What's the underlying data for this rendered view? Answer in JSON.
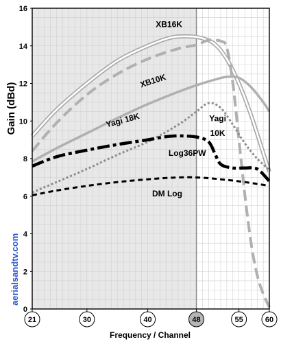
{
  "chart_data": {
    "type": "line",
    "xlabel": "Frequency / Channel",
    "ylabel": "Gain (dBd)",
    "xlim": [
      21,
      60
    ],
    "ylim": [
      0,
      16
    ],
    "yticks": [
      0,
      2,
      4,
      6,
      8,
      10,
      12,
      14,
      16
    ],
    "channel_markers": [
      21,
      30,
      40,
      48,
      55,
      60
    ],
    "highlighted_channel": 48,
    "shaded_band": [
      21,
      48
    ],
    "grid": true,
    "watermark": "aerialsandtv.com",
    "series": [
      {
        "name": "XB16K",
        "style": "double-line",
        "color": "#aaaaaa",
        "points": [
          [
            21,
            9.2
          ],
          [
            25,
            10.6
          ],
          [
            30,
            12.0
          ],
          [
            35,
            13.2
          ],
          [
            40,
            14.0
          ],
          [
            44,
            14.45
          ],
          [
            47,
            14.5
          ],
          [
            49,
            14.4
          ],
          [
            51,
            14.1
          ],
          [
            53,
            13.3
          ],
          [
            55,
            12.0
          ],
          [
            57,
            10.3
          ],
          [
            59,
            8.3
          ],
          [
            60,
            7.3
          ]
        ]
      },
      {
        "name": "XB10K",
        "style": "dashed",
        "color": "#b0b0b0",
        "points": [
          [
            21,
            8.4
          ],
          [
            25,
            9.9
          ],
          [
            30,
            11.4
          ],
          [
            35,
            12.5
          ],
          [
            40,
            13.3
          ],
          [
            45,
            13.85
          ],
          [
            48,
            14.05
          ],
          [
            50,
            14.3
          ],
          [
            52,
            14.25
          ],
          [
            53,
            13.9
          ],
          [
            54,
            12.0
          ],
          [
            55,
            9.0
          ],
          [
            56,
            6.0
          ],
          [
            57,
            3.5
          ],
          [
            58,
            1.8
          ],
          [
            59,
            0.8
          ],
          [
            60,
            0.1
          ]
        ]
      },
      {
        "name": "Yagi 18K",
        "style": "solid-thick",
        "color": "#b0b0b0",
        "points": [
          [
            21,
            7.85
          ],
          [
            25,
            8.55
          ],
          [
            30,
            9.35
          ],
          [
            35,
            10.15
          ],
          [
            40,
            10.9
          ],
          [
            45,
            11.55
          ],
          [
            48,
            11.9
          ],
          [
            51,
            12.2
          ],
          [
            53,
            12.35
          ],
          [
            55,
            12.3
          ],
          [
            57,
            11.8
          ],
          [
            59,
            11.0
          ],
          [
            60,
            10.5
          ]
        ]
      },
      {
        "name": "Yagi 10K",
        "style": "dotted",
        "color": "#8c8c8c",
        "points": [
          [
            21,
            6.2
          ],
          [
            25,
            6.75
          ],
          [
            30,
            7.45
          ],
          [
            35,
            8.2
          ],
          [
            40,
            8.9
          ],
          [
            45,
            9.8
          ],
          [
            48,
            10.5
          ],
          [
            50,
            10.95
          ],
          [
            52,
            10.7
          ],
          [
            54,
            9.8
          ],
          [
            56,
            8.8
          ],
          [
            58,
            8.0
          ],
          [
            60,
            7.4
          ]
        ]
      },
      {
        "name": "Log36PW",
        "style": "dash-dot-thick",
        "color": "#000000",
        "points": [
          [
            21,
            7.6
          ],
          [
            25,
            8.1
          ],
          [
            30,
            8.45
          ],
          [
            35,
            8.75
          ],
          [
            40,
            9.0
          ],
          [
            44,
            9.2
          ],
          [
            48,
            9.15
          ],
          [
            50,
            8.9
          ],
          [
            51,
            8.3
          ],
          [
            52,
            7.7
          ],
          [
            54,
            7.5
          ],
          [
            56,
            7.5
          ],
          [
            58,
            7.45
          ],
          [
            60,
            6.8
          ]
        ]
      },
      {
        "name": "DM Log",
        "style": "short-dashed",
        "color": "#000000",
        "points": [
          [
            21,
            6.05
          ],
          [
            25,
            6.3
          ],
          [
            30,
            6.55
          ],
          [
            35,
            6.75
          ],
          [
            40,
            6.9
          ],
          [
            45,
            7.0
          ],
          [
            48,
            7.0
          ],
          [
            52,
            6.9
          ],
          [
            56,
            6.75
          ],
          [
            60,
            6.55
          ]
        ]
      }
    ],
    "annotations": [
      {
        "text": "XB16K",
        "x": 43.5,
        "y": 15.0
      },
      {
        "text": "XB10K",
        "x": 41.0,
        "y": 12.0,
        "rotate": -18
      },
      {
        "text": "Yagi 18K",
        "x": 36.0,
        "y": 9.9,
        "rotate": -15
      },
      {
        "text": "Yagi",
        "x": 51.5,
        "y": 10.0
      },
      {
        "text": "10K",
        "x": 51.5,
        "y": 9.2
      },
      {
        "text": "Log36PW",
        "x": 46.5,
        "y": 8.15
      },
      {
        "text": "DM Log",
        "x": 43.2,
        "y": 6.0
      }
    ]
  }
}
